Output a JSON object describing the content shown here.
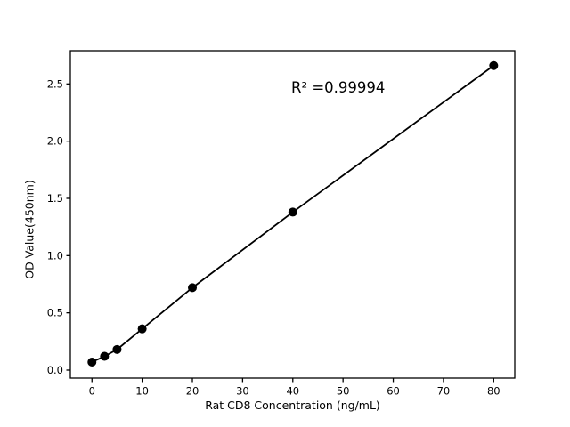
{
  "chart_data": {
    "type": "scatter",
    "title": "",
    "xlabel": "Rat CD8 Concentration (ng/mL)",
    "ylabel": "OD Value(450nm)",
    "annotation": "R² =0.99994",
    "r_squared": 0.99994,
    "x": [
      0,
      2.5,
      5,
      10,
      20,
      40,
      80
    ],
    "y": [
      0.07,
      0.12,
      0.18,
      0.36,
      0.72,
      1.38,
      2.66
    ],
    "trendline_through_points": true,
    "xticks": [
      "0",
      "10",
      "20",
      "30",
      "40",
      "50",
      "60",
      "70",
      "80"
    ],
    "yticks": [
      "0.0",
      "0.5",
      "1.0",
      "1.5",
      "2.0",
      "2.5"
    ],
    "xlim": [
      -4.3,
      84.2
    ],
    "ylim": [
      -0.07,
      2.79
    ],
    "grid": false,
    "legend": false,
    "marker_color": "#000000",
    "line_color": "#000000",
    "axis_color": "#000000",
    "background_color": "#ffffff"
  }
}
